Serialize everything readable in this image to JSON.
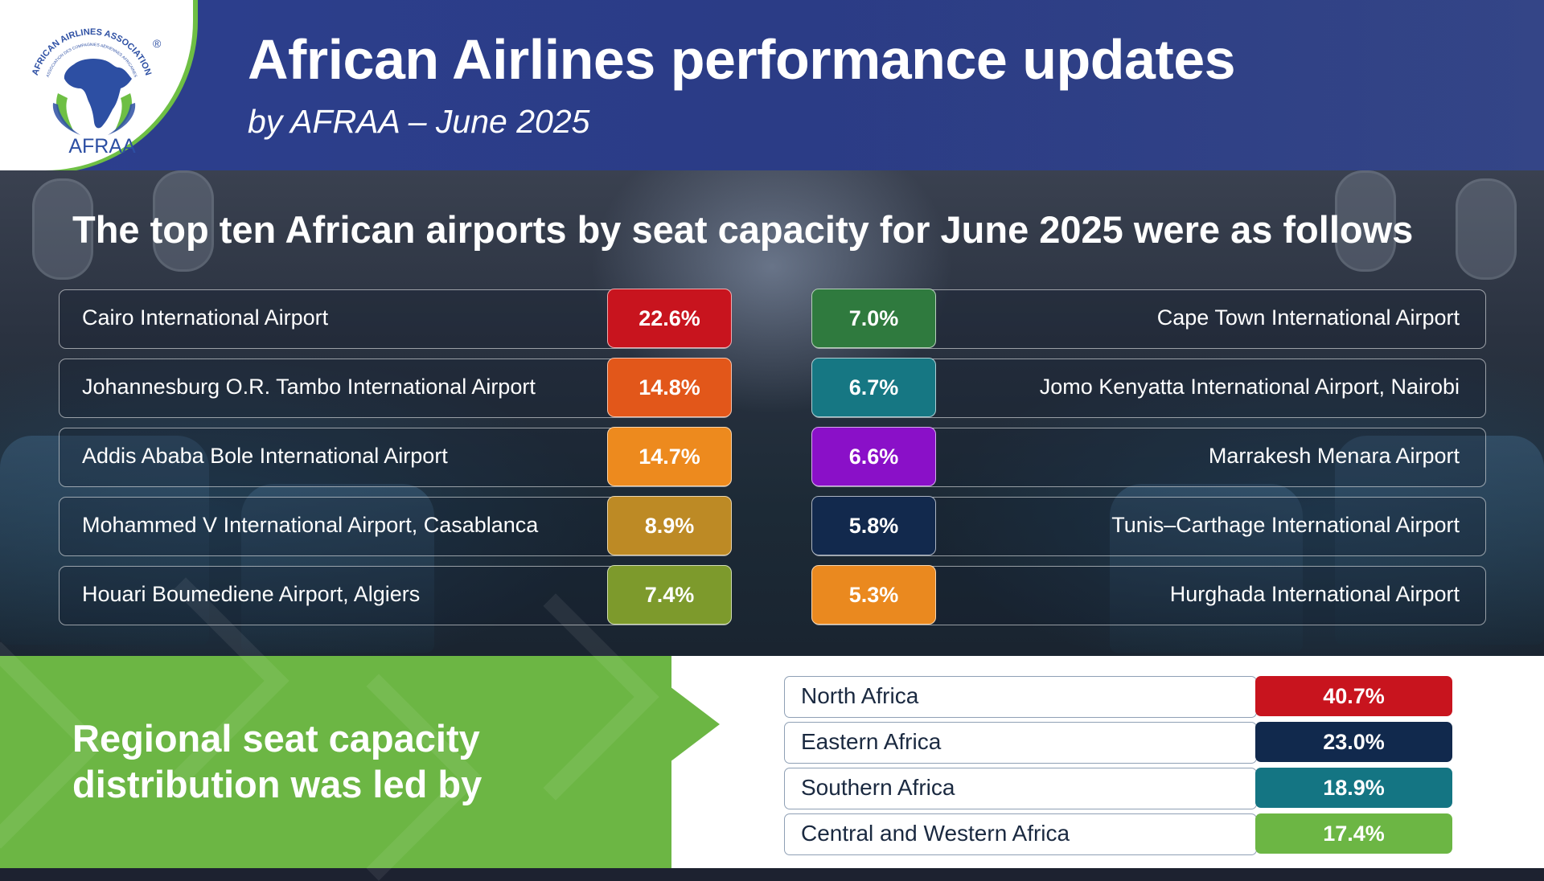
{
  "header": {
    "title": "African Airlines performance updates",
    "subtitle": "by AFRAA – June 2025",
    "logo_text": "AFRAA",
    "logo_arc_text": "AFRICAN AIRLINES ASSOCIATION",
    "logo_arc_subtext": "ASSOCIATION DES COMPAGNIES AÉRIENNES AFRICAINES",
    "registered_mark": "®"
  },
  "airports": {
    "heading": "The top ten African airports by seat capacity for June 2025 were as follows",
    "left": [
      {
        "name": "Cairo International Airport",
        "share": "22.6%",
        "color": "#c8141e"
      },
      {
        "name": "Johannesburg O.R. Tambo International Airport",
        "share": "14.8%",
        "color": "#e2571a"
      },
      {
        "name": "Addis Ababa Bole International Airport",
        "share": "14.7%",
        "color": "#ed8a1e"
      },
      {
        "name": "Mohammed V International Airport, Casablanca",
        "share": "8.9%",
        "color": "#bd8a25"
      },
      {
        "name": "Houari Boumediene Airport, Algiers",
        "share": "7.4%",
        "color": "#7d9a2c"
      }
    ],
    "right": [
      {
        "name": "Cape Town International Airport",
        "share": "7.0%",
        "color": "#2f7a3e"
      },
      {
        "name": "Jomo Kenyatta International Airport, Nairobi",
        "share": "6.7%",
        "color": "#167783"
      },
      {
        "name": "Marrakesh Menara Airport",
        "share": "6.6%",
        "color": "#8a10c8"
      },
      {
        "name": "Tunis–Carthage International Airport",
        "share": "5.8%",
        "color": "#12294d"
      },
      {
        "name": "Hurghada International Airport",
        "share": "5.3%",
        "color": "#ea891f"
      }
    ]
  },
  "regional": {
    "heading_line1": "Regional seat capacity",
    "heading_line2": "distribution was led by",
    "regions": [
      {
        "name": "North Africa",
        "share": "40.7%",
        "color": "#c8141e"
      },
      {
        "name": "Eastern Africa",
        "share": "23.0%",
        "color": "#11294d"
      },
      {
        "name": "Southern Africa",
        "share": "18.9%",
        "color": "#147583"
      },
      {
        "name": "Central and Western Africa",
        "share": "17.4%",
        "color": "#6cb644"
      }
    ]
  },
  "colors": {
    "header_blue": "#2c3f8e",
    "brand_green": "#6cb644",
    "logo_blue": "#2d4fa3"
  }
}
